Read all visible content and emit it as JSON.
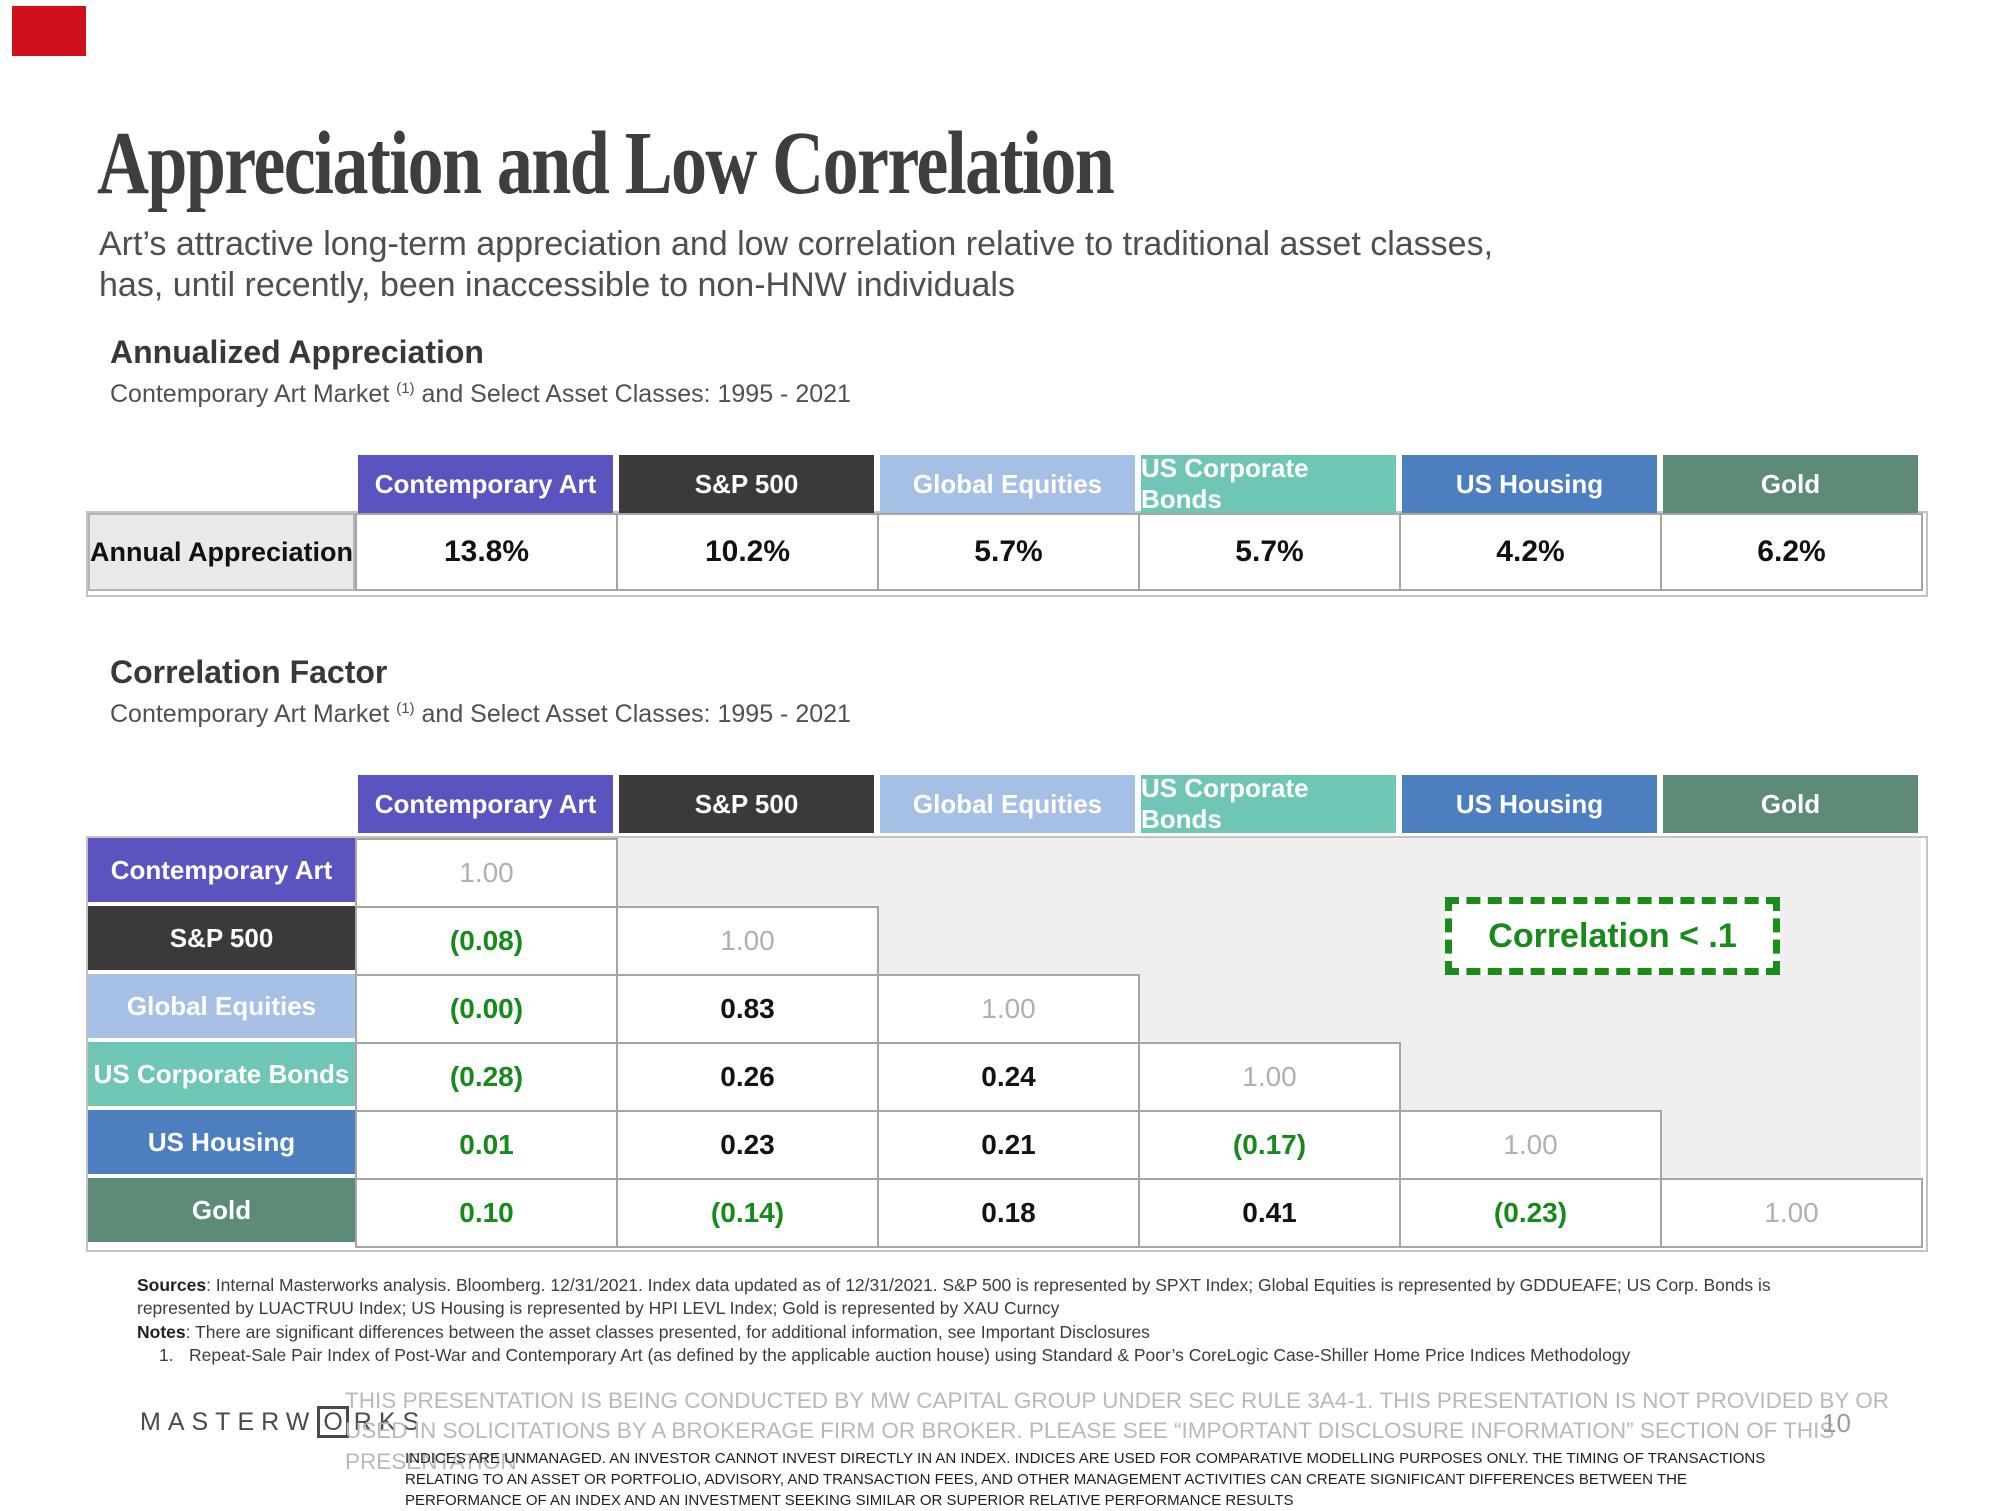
{
  "slide": {
    "title": "Appreciation and Low Correlation",
    "subtitle": "Art’s attractive long-term appreciation and low correlation relative to traditional asset classes, has, until recently, been inaccessible to non-HNW individuals",
    "page_number": "10"
  },
  "assets": [
    {
      "label": "Contemporary Art",
      "color": "#5a53c0"
    },
    {
      "label": "S&P 500",
      "color": "#3b393a"
    },
    {
      "label": "Global Equities",
      "color": "#a6bfe4"
    },
    {
      "label": "US Corporate Bonds",
      "color": "#6fc6b4"
    },
    {
      "label": "US Housing",
      "color": "#4d7ec0"
    },
    {
      "label": "Gold",
      "color": "#5e8b78"
    }
  ],
  "appreciation": {
    "heading": "Annualized Appreciation",
    "caption_prefix": "Contemporary Art Market ",
    "caption_sup": "(1)",
    "caption_suffix": " and Select Asset Classes: 1995 - 2021",
    "row_label": "Annual Appreciation",
    "values": [
      "13.8%",
      "10.2%",
      "5.7%",
      "5.7%",
      "4.2%",
      "6.2%"
    ]
  },
  "correlation": {
    "heading": "Correlation Factor",
    "caption_prefix": "Contemporary Art Market ",
    "caption_sup": "(1)",
    "caption_suffix": " and Select Asset Classes: 1995 - 2021",
    "legend": "Correlation < .1",
    "matrix": [
      [
        "1.00"
      ],
      [
        "(0.08)",
        "1.00"
      ],
      [
        "(0.00)",
        "0.83",
        "1.00"
      ],
      [
        "(0.28)",
        "0.26",
        "0.24",
        "1.00"
      ],
      [
        "0.01",
        "0.23",
        "0.21",
        "(0.17)",
        "1.00"
      ],
      [
        "0.10",
        "(0.14)",
        "0.18",
        "0.41",
        "(0.23)",
        "1.00"
      ]
    ],
    "green_cells": [
      [
        1,
        0
      ],
      [
        2,
        0
      ],
      [
        3,
        0
      ],
      [
        4,
        0
      ],
      [
        4,
        3
      ],
      [
        5,
        0
      ],
      [
        5,
        1
      ],
      [
        5,
        4
      ]
    ]
  },
  "footer": {
    "sources_label": "Sources",
    "sources_text": ": Internal Masterworks analysis. Bloomberg. 12/31/2021. Index data updated as of 12/31/2021. S&P 500 is represented by SPXT Index; Global Equities is represented by GDDUEAFE; US Corp. Bonds is represented by LUACTRUU Index; US Housing is represented by HPI LEVL Index; Gold is represented by XAU Curncy",
    "notes_label": "Notes",
    "notes_text": ": There are significant differences between the asset classes presented, for additional information, see Important Disclosures",
    "note1_num": "1.",
    "note1_text": "Repeat-Sale Pair Index of Post-War and Contemporary Art (as defined by the applicable auction house) using Standard & Poor’s CoreLogic Case-Shiller Home Price Indices Methodology",
    "logo_pre": "MASTERW",
    "logo_o": "O",
    "logo_post": "RKS",
    "disclaimer_gray": "THIS PRESENTATION  IS BEING CONDUCTED BY MW CAPITAL GROUP UNDER SEC RULE 3A4-1. THIS PRESENTATION  IS NOT PROVIDED BY OR USED IN SOLICITATIONS BY A BROKERAGE FIRM OR BROKER. PLEASE SEE “IMPORTANT DISCLOSURE INFORMATION” SECTION OF THIS PRESENTATION",
    "disclaimer_black": "INDICES ARE UNMANAGED. AN INVESTOR CANNOT INVEST DIRECTLY IN AN INDEX. INDICES ARE USED FOR COMPARATIVE MODELLING PURPOSES ONLY. THE TIMING OF TRANSACTIONS RELATING TO AN ASSET OR PORTFOLIO, ADVISORY, AND TRANSACTION FEES, AND OTHER MANAGEMENT ACTIVITIES CAN CREATE SIGNIFICANT DIFFERENCES BETWEEN THE PERFORMANCE OF AN INDEX AND AN INVESTMENT SEEKING SIMILAR OR SUPERIOR RELATIVE PERFORMANCE RESULTS"
  },
  "colors": {
    "green_value": "#178a1b",
    "diagonal_gray": "#b0b0b0",
    "empty_region": "#efefef",
    "corner_marker_red": "#d0111b"
  }
}
